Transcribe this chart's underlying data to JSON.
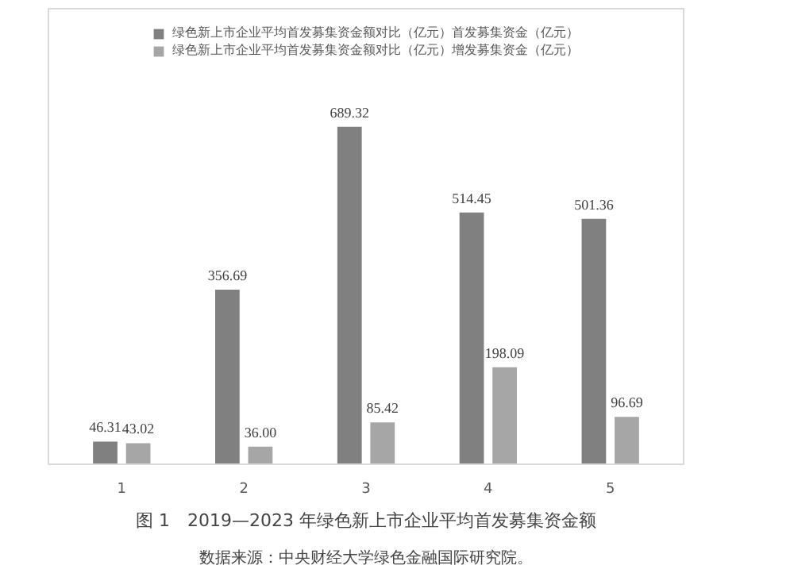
{
  "chart_data": {
    "type": "bar",
    "title": "图 1　2019—2023 年绿色新上市企业平均首发募集资金额",
    "annotations": [
      "数据来源：中央财经大学绿色金融国际研究院。"
    ],
    "categories": [
      "1",
      "2",
      "3",
      "4",
      "5"
    ],
    "series": [
      {
        "name": "绿色新上市企业平均首发募集资金额对比（亿元）首发募集资金（亿元）",
        "color": "#808080",
        "values": [
          46.31,
          356.69,
          689.32,
          514.45,
          501.36
        ],
        "value_labels": [
          "46.31",
          "356.69",
          "689.32",
          "514.45",
          "501.36"
        ]
      },
      {
        "name": "绿色新上市企业平均首发募集资金额对比（亿元）增发募集资金（亿元）",
        "color": "#a6a6a6",
        "values": [
          43.02,
          36.0,
          85.42,
          198.09,
          96.69
        ],
        "value_labels": [
          "43.02",
          "36.00",
          "85.42",
          "198.09",
          "96.69"
        ]
      }
    ],
    "legend": "top"
  }
}
